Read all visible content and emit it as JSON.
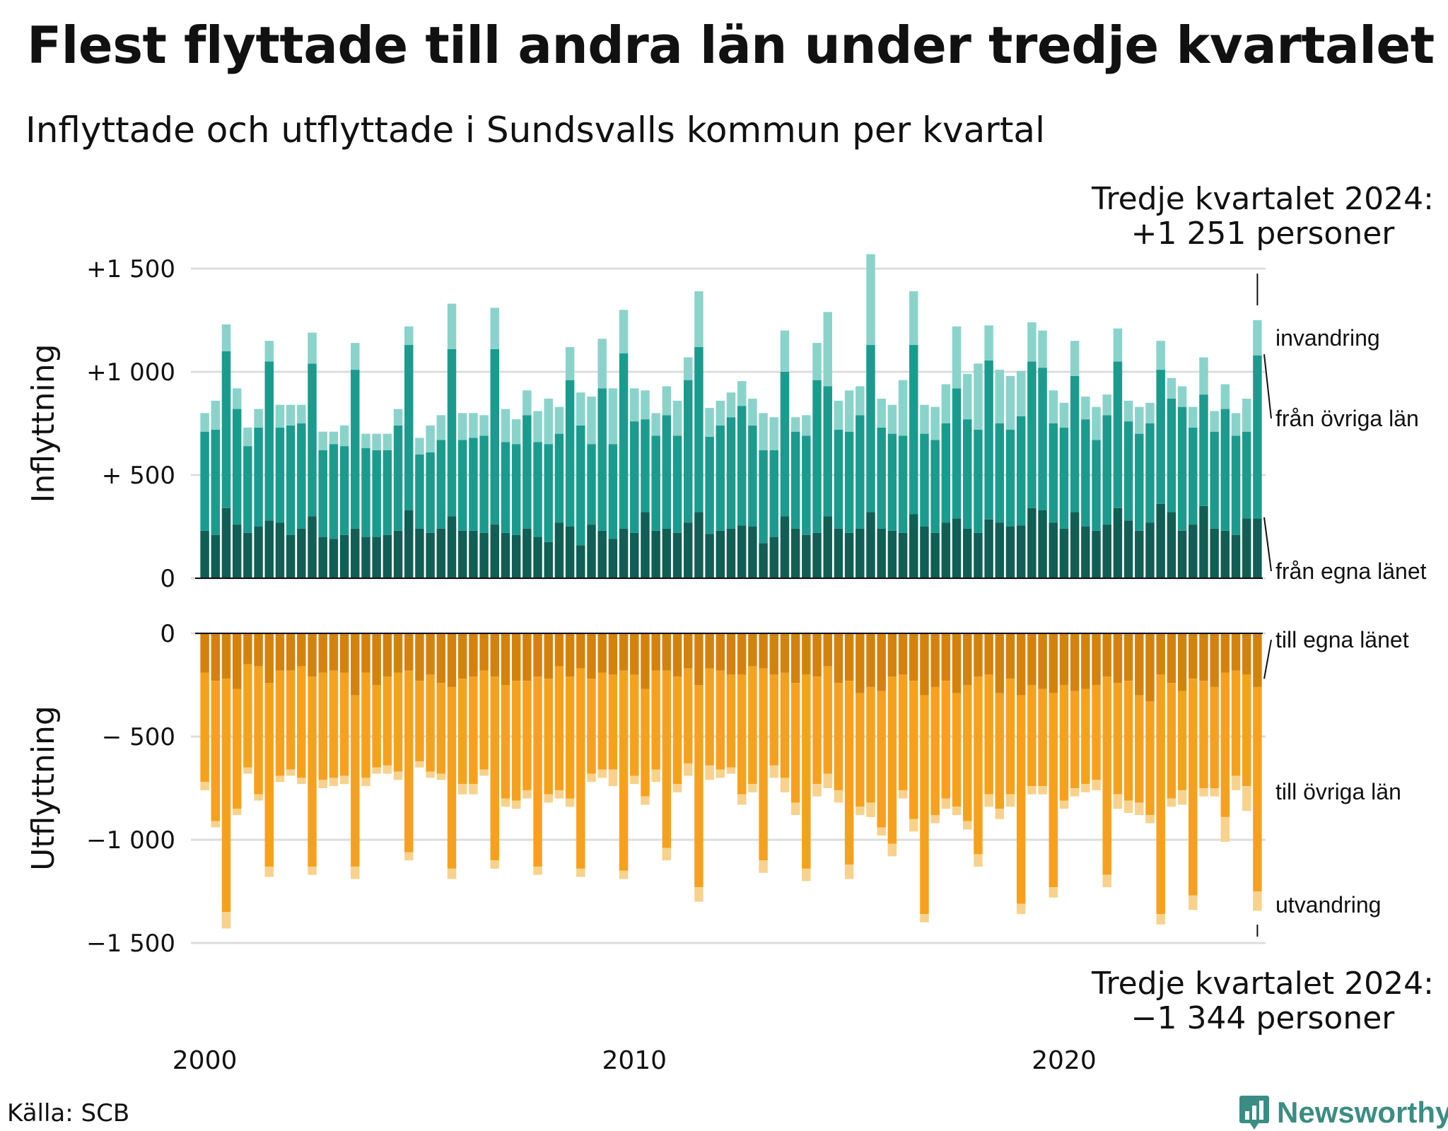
{
  "title": "Flest flyttade till andra län under tredje kvartalet",
  "subtitle": "Inflyttade och utflyttade i Sundsvalls kommun per kvartal",
  "source": "Källa: SCB",
  "brand": "Newsworthy",
  "colors": {
    "inv": "#8ad3cb",
    "ovr_in": "#1b9b8e",
    "egna_in": "#115e55",
    "egna_ut": "#d4820e",
    "ovr_ut": "#f6a11e",
    "utv": "#f8d28c",
    "grid": "#dddddd",
    "text": "#111111",
    "brand": "#3b8d83"
  },
  "chart_data": [
    {
      "type": "bar",
      "stacked": true,
      "ylabel": "Inflyttning",
      "ylim": [
        0,
        1500
      ],
      "yticks": [
        0,
        500,
        1000,
        1500
      ],
      "ytick_labels": [
        "0",
        "+  500",
        "+1 000",
        "+1 500"
      ],
      "grid": true,
      "x_labels": [
        "2000",
        "2010",
        "2020"
      ],
      "x_first_year": 2000,
      "n_quarters": 99,
      "series_order": [
        "från egna länet",
        "från övriga län",
        "invandring"
      ],
      "series": [
        {
          "name": "från egna länet",
          "values": [
            230,
            210,
            340,
            260,
            220,
            250,
            280,
            270,
            210,
            240,
            300,
            200,
            190,
            210,
            240,
            200,
            200,
            210,
            230,
            330,
            240,
            220,
            240,
            300,
            230,
            230,
            220,
            260,
            220,
            210,
            240,
            200,
            175,
            270,
            250,
            160,
            260,
            230,
            190,
            240,
            220,
            320,
            230,
            240,
            220,
            270,
            320,
            215,
            230,
            240,
            255,
            250,
            170,
            200,
            300,
            240,
            210,
            220,
            300,
            240,
            220,
            240,
            320,
            240,
            230,
            220,
            310,
            250,
            220,
            270,
            290,
            240,
            220,
            285,
            270,
            250,
            255,
            340,
            330,
            270,
            240,
            320,
            250,
            230,
            260,
            340,
            280,
            230,
            270,
            360,
            320,
            230,
            260,
            350,
            240,
            230,
            210,
            290,
            290
          ]
        },
        {
          "name": "från övriga län",
          "values": [
            480,
            510,
            760,
            560,
            420,
            480,
            770,
            460,
            530,
            510,
            740,
            420,
            460,
            430,
            770,
            430,
            420,
            410,
            510,
            800,
            360,
            390,
            430,
            810,
            440,
            450,
            470,
            850,
            440,
            440,
            550,
            460,
            475,
            430,
            710,
            580,
            390,
            690,
            460,
            850,
            540,
            450,
            460,
            550,
            470,
            690,
            800,
            470,
            510,
            540,
            580,
            490,
            450,
            420,
            700,
            470,
            480,
            740,
            630,
            480,
            490,
            550,
            810,
            490,
            470,
            470,
            820,
            450,
            450,
            480,
            630,
            530,
            500,
            770,
            480,
            470,
            530,
            710,
            690,
            480,
            490,
            660,
            520,
            440,
            530,
            710,
            480,
            470,
            480,
            650,
            550,
            600,
            470,
            540,
            470,
            590,
            480,
            420,
            790
          ]
        },
        {
          "name": "invandring",
          "values": [
            90,
            140,
            130,
            100,
            90,
            90,
            100,
            110,
            100,
            90,
            150,
            90,
            60,
            100,
            130,
            70,
            80,
            80,
            80,
            90,
            80,
            130,
            120,
            220,
            130,
            120,
            100,
            200,
            160,
            120,
            120,
            150,
            220,
            130,
            160,
            160,
            230,
            240,
            270,
            210,
            160,
            140,
            110,
            140,
            170,
            110,
            270,
            140,
            120,
            120,
            120,
            130,
            180,
            160,
            200,
            70,
            100,
            180,
            360,
            140,
            200,
            140,
            440,
            140,
            140,
            270,
            260,
            140,
            160,
            190,
            300,
            220,
            320,
            170,
            260,
            260,
            220,
            190,
            180,
            160,
            120,
            170,
            110,
            160,
            100,
            160,
            100,
            130,
            100,
            140,
            100,
            100,
            100,
            180,
            100,
            120,
            110,
            160,
            170
          ]
        }
      ]
    },
    {
      "type": "bar",
      "stacked": true,
      "ylabel": "Utflyttning",
      "ylim": [
        -1500,
        0
      ],
      "yticks": [
        0,
        -500,
        -1000,
        -1500
      ],
      "ytick_labels": [
        "0",
        "−  500",
        "−1 000",
        "−1 500"
      ],
      "grid": true,
      "series_order": [
        "till egna länet",
        "till övriga län",
        "utvandring"
      ],
      "series": [
        {
          "name": "till egna länet",
          "values": [
            -190,
            -230,
            -220,
            -270,
            -150,
            -160,
            -240,
            -180,
            -180,
            -160,
            -210,
            -190,
            -180,
            -190,
            -300,
            -190,
            -250,
            -210,
            -190,
            -180,
            -230,
            -200,
            -240,
            -260,
            -220,
            -210,
            -180,
            -210,
            -250,
            -230,
            -230,
            -210,
            -220,
            -160,
            -210,
            -170,
            -220,
            -190,
            -200,
            -180,
            -200,
            -270,
            -180,
            -180,
            -210,
            -170,
            -250,
            -170,
            -180,
            -200,
            -200,
            -160,
            -170,
            -200,
            -190,
            -240,
            -200,
            -210,
            -160,
            -240,
            -230,
            -290,
            -260,
            -280,
            -210,
            -200,
            -230,
            -300,
            -260,
            -230,
            -290,
            -250,
            -210,
            -200,
            -290,
            -220,
            -300,
            -250,
            -270,
            -290,
            -250,
            -280,
            -270,
            -250,
            -210,
            -240,
            -230,
            -300,
            -330,
            -200,
            -240,
            -280,
            -220,
            -230,
            -260,
            -190,
            -180,
            -200,
            -260
          ]
        },
        {
          "name": "till övriga län",
          "values": [
            -530,
            -680,
            -1130,
            -580,
            -500,
            -620,
            -890,
            -510,
            -480,
            -540,
            -920,
            -520,
            -520,
            -500,
            -830,
            -510,
            -400,
            -430,
            -480,
            -880,
            -390,
            -470,
            -440,
            -880,
            -510,
            -520,
            -480,
            -890,
            -550,
            -580,
            -530,
            -920,
            -560,
            -600,
            -590,
            -970,
            -460,
            -470,
            -460,
            -970,
            -490,
            -520,
            -480,
            -860,
            -520,
            -460,
            -980,
            -470,
            -480,
            -450,
            -580,
            -570,
            -930,
            -440,
            -510,
            -580,
            -940,
            -520,
            -520,
            -520,
            -890,
            -550,
            -560,
            -660,
            -810,
            -560,
            -670,
            -1060,
            -620,
            -570,
            -550,
            -660,
            -860,
            -580,
            -560,
            -560,
            -1010,
            -490,
            -470,
            -940,
            -560,
            -470,
            -460,
            -460,
            -960,
            -540,
            -580,
            -520,
            -550,
            -1160,
            -560,
            -480,
            -1050,
            -520,
            -490,
            -700,
            -510,
            -540,
            -990
          ]
        },
        {
          "name": "utvandring",
          "values": [
            -40,
            -30,
            -80,
            -30,
            -30,
            -30,
            -50,
            -30,
            -30,
            -30,
            -40,
            -40,
            -40,
            -40,
            -60,
            -40,
            -30,
            -40,
            -40,
            -40,
            -30,
            -30,
            -30,
            -50,
            -50,
            -50,
            -30,
            -40,
            -40,
            -40,
            -40,
            -40,
            -40,
            -40,
            -40,
            -40,
            -40,
            -40,
            -80,
            -40,
            -40,
            -40,
            -60,
            -60,
            -40,
            -60,
            -70,
            -70,
            -40,
            -30,
            -50,
            -40,
            -60,
            -60,
            -70,
            -60,
            -60,
            -60,
            -70,
            -60,
            -70,
            -40,
            -70,
            -40,
            -60,
            -40,
            -60,
            -40,
            -40,
            -50,
            -40,
            -40,
            -60,
            -60,
            -50,
            -60,
            -50,
            -40,
            -40,
            -50,
            -40,
            -40,
            -40,
            -50,
            -60,
            -70,
            -60,
            -60,
            -40,
            -50,
            -40,
            -70,
            -70,
            -40,
            -40,
            -120,
            -70,
            -120,
            -94
          ]
        }
      ]
    }
  ],
  "annotations": {
    "top": [
      "Tredje kvartalet 2024:",
      "+1 251 personer"
    ],
    "bottom": [
      "Tredje kvartalet 2024:",
      "−1 344 personer"
    ]
  }
}
